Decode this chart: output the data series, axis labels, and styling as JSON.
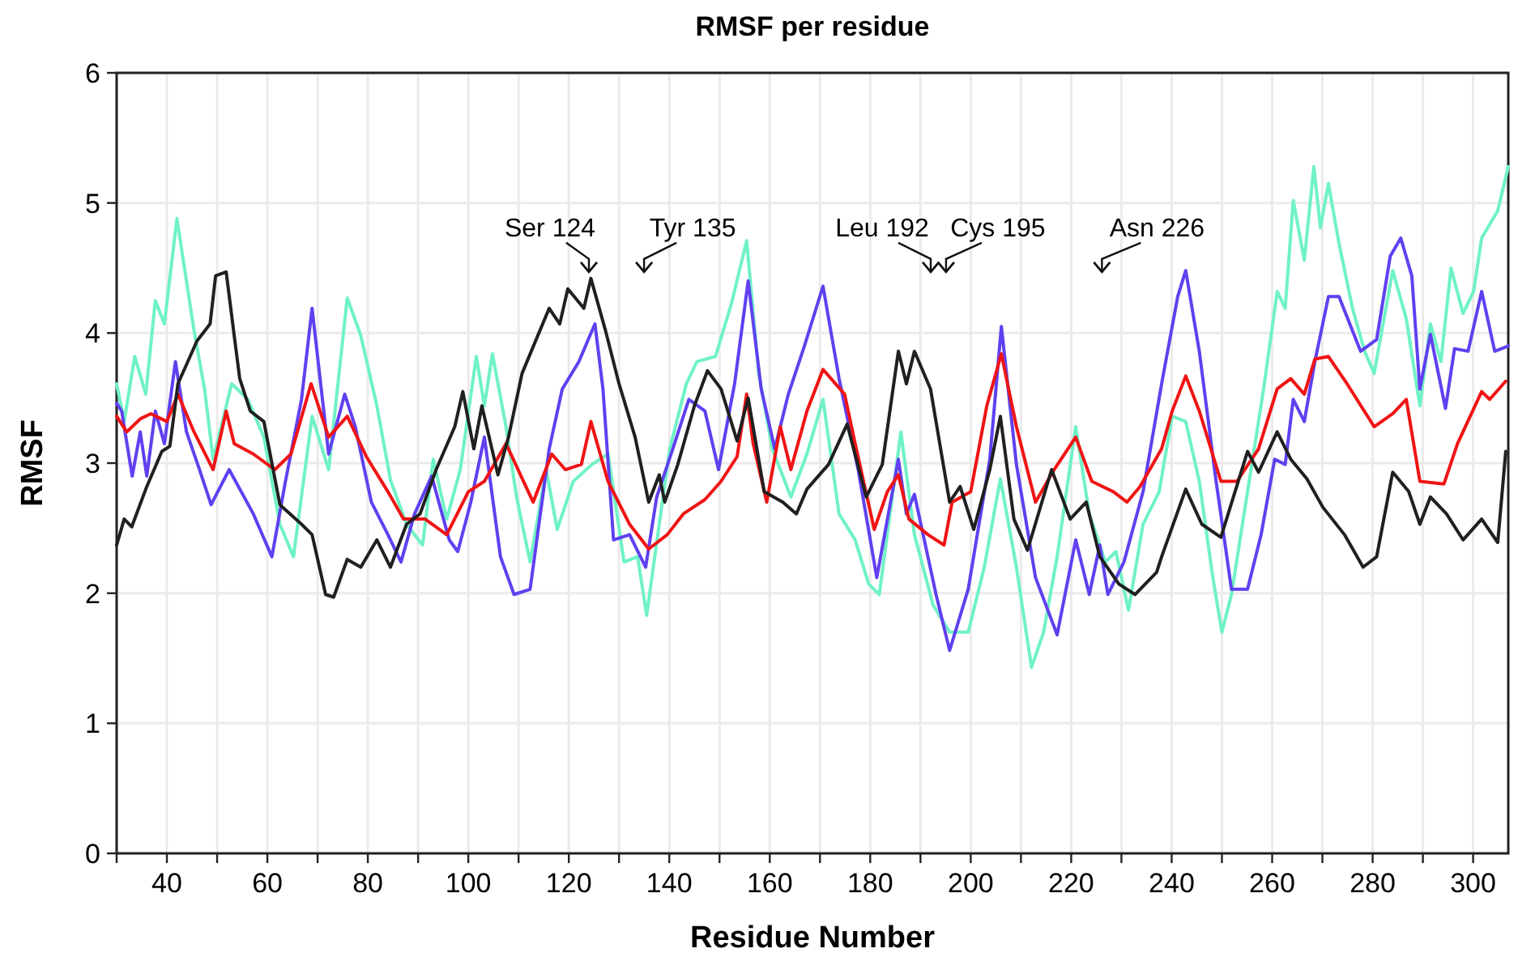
{
  "chart_data": {
    "type": "line",
    "title": "RMSF per residue",
    "xlabel": "Residue Number",
    "ylabel": "RMSF",
    "xlim": [
      30,
      307
    ],
    "xticks": [
      {
        "value": 30,
        "label": null
      },
      40,
      {
        "value": 50,
        "label": null
      },
      60,
      {
        "value": 70,
        "label": null
      },
      80,
      {
        "value": 90,
        "label": null
      },
      100,
      {
        "value": 110,
        "label": null
      },
      120,
      {
        "value": 130,
        "label": null
      },
      140,
      {
        "value": 150,
        "label": null
      },
      160,
      {
        "value": 170,
        "label": null
      },
      180,
      {
        "value": 190,
        "label": null
      },
      200,
      {
        "value": 210,
        "label": null
      },
      220,
      {
        "value": 230,
        "label": null
      },
      240,
      {
        "value": 250,
        "label": null
      },
      260,
      {
        "value": 270,
        "label": null
      },
      280,
      {
        "value": 290,
        "label": null
      },
      300
    ],
    "ylim": [
      0,
      6
    ],
    "yticks": [
      0,
      1,
      2,
      3,
      4,
      5,
      6
    ],
    "grid": true,
    "marker": "none",
    "line_style": "solid",
    "annotations": [
      {
        "text": "Ser 124",
        "x": 124,
        "y": 4.47
      },
      "Tyr 135",
      "Leu 192",
      "Cys 195",
      "Asn 226"
    ],
    "series": [
      {
        "color": "#6ff2c6",
        "x": [
          30,
          31.5,
          33.6,
          35.8,
          37.7,
          39.5,
          42,
          45.4,
          47.5,
          49.2,
          52.9,
          56.1,
          59.3,
          62.5,
          65.2,
          68.9,
          72.2,
          75.9,
          78.6,
          81.8,
          84.5,
          87.7,
          90.9,
          93,
          95.7,
          98.4,
          101.6,
          103.2,
          104.8,
          107.5,
          109.6,
          112.3,
          115.5,
          117.7,
          120.9,
          124.6,
          127.8,
          131,
          133.7,
          135.5,
          138,
          140.1,
          143.4,
          145.5,
          149.2,
          152.4,
          155.4,
          157.8,
          160.5,
          164.2,
          167.4,
          170.6,
          173.8,
          177,
          179.7,
          181.8,
          186.1,
          188.8,
          192.5,
          195.8,
          199.5,
          202.7,
          205.9,
          209.1,
          212.1,
          214.5,
          217.2,
          220.9,
          223.6,
          226.8,
          228.9,
          231.4,
          234.3,
          237.5,
          240.1,
          242.8,
          245.5,
          248.2,
          250,
          251.9,
          255.1,
          258.3,
          261,
          262.6,
          264.2,
          266.4,
          268.3,
          269.6,
          271.2,
          273.3,
          276,
          278.4,
          280.3,
          284,
          286.7,
          289.4,
          291.5,
          293.6,
          295.6,
          298,
          300.1,
          301.7,
          304.9,
          307
        ],
        "values": [
          3.61,
          3.32,
          3.82,
          3.53,
          4.25,
          4.07,
          4.88,
          4.02,
          3.57,
          3.03,
          3.61,
          3.49,
          3.2,
          2.53,
          2.28,
          3.36,
          2.95,
          4.27,
          3.98,
          3.44,
          2.87,
          2.53,
          2.37,
          3.03,
          2.57,
          2.95,
          3.82,
          3.44,
          3.84,
          3.28,
          2.74,
          2.24,
          2.95,
          2.49,
          2.86,
          2.99,
          3.07,
          2.24,
          2.28,
          1.83,
          2.53,
          3.11,
          3.61,
          3.78,
          3.82,
          4.23,
          4.71,
          3.69,
          3.11,
          2.74,
          3.07,
          3.49,
          2.61,
          2.41,
          2.07,
          1.99,
          3.24,
          2.45,
          1.91,
          1.7,
          1.7,
          2.2,
          2.88,
          2.2,
          1.43,
          1.7,
          2.28,
          3.28,
          2.61,
          2.24,
          2.32,
          1.87,
          2.53,
          2.78,
          3.36,
          3.32,
          2.86,
          2.12,
          1.7,
          1.99,
          2.78,
          3.57,
          4.32,
          4.19,
          5.02,
          4.56,
          5.28,
          4.81,
          5.15,
          4.69,
          4.19,
          3.86,
          3.69,
          4.48,
          4.11,
          3.44,
          4.07,
          3.78,
          4.5,
          4.15,
          4.32,
          4.73,
          4.94,
          5.28
        ]
      },
      {
        "color": "#6040f0",
        "x": [
          30,
          31,
          33.1,
          34.7,
          36,
          37.7,
          39.5,
          41.7,
          43.9,
          46.5,
          48.8,
          52.4,
          57.2,
          60.9,
          63.6,
          66.8,
          68.9,
          72.2,
          75.4,
          77.5,
          80.7,
          84,
          86.6,
          89.3,
          92.7,
          96.2,
          97.9,
          100.5,
          103.2,
          106.4,
          109.1,
          112.3,
          116.1,
          118.7,
          122,
          125.2,
          126.8,
          128.9,
          132.1,
          135.3,
          137.5,
          140.7,
          143.9,
          147.1,
          149.8,
          153,
          155.7,
          158.3,
          161,
          163.7,
          166.9,
          170.6,
          173.8,
          177.6,
          181.3,
          185.6,
          187.2,
          188.8,
          193.1,
          195.8,
          199.5,
          203.8,
          206.1,
          209.1,
          212.9,
          217.2,
          220.9,
          223.6,
          225.7,
          227.3,
          230.5,
          234.3,
          238,
          241.2,
          242.8,
          245.5,
          248.7,
          251.9,
          255.1,
          257.8,
          260.5,
          262.6,
          264.2,
          266.4,
          268.5,
          271.2,
          273.3,
          277.6,
          280.8,
          283.5,
          285.6,
          287.8,
          289.4,
          291.5,
          294.5,
          296.3,
          299,
          301.7,
          304.3,
          307
        ],
        "values": [
          3.46,
          3.4,
          2.9,
          3.24,
          2.9,
          3.4,
          3.15,
          3.78,
          3.24,
          2.95,
          2.68,
          2.95,
          2.61,
          2.28,
          2.86,
          3.49,
          4.19,
          3.07,
          3.53,
          3.28,
          2.7,
          2.45,
          2.24,
          2.61,
          2.9,
          2.41,
          2.32,
          2.7,
          3.2,
          2.28,
          1.99,
          2.03,
          3.11,
          3.57,
          3.78,
          4.07,
          3.57,
          2.41,
          2.45,
          2.2,
          2.74,
          3.11,
          3.49,
          3.4,
          2.95,
          3.61,
          4.4,
          3.57,
          3.11,
          3.53,
          3.9,
          4.36,
          3.65,
          2.95,
          2.12,
          3.03,
          2.61,
          2.76,
          1.99,
          1.56,
          2.03,
          3.03,
          4.05,
          2.99,
          2.12,
          1.68,
          2.41,
          1.99,
          2.37,
          1.99,
          2.24,
          2.78,
          3.61,
          4.28,
          4.48,
          3.86,
          2.9,
          2.03,
          2.03,
          2.45,
          3.03,
          2.99,
          3.49,
          3.32,
          3.78,
          4.28,
          4.28,
          3.86,
          3.95,
          4.59,
          4.73,
          4.44,
          3.57,
          3.99,
          3.42,
          3.88,
          3.86,
          4.32,
          3.86,
          3.9
        ]
      },
      {
        "color": "#f01414",
        "x": [
          30,
          32,
          34.7,
          36.8,
          40,
          42.2,
          45.4,
          49.2,
          51.8,
          53.4,
          57.2,
          61.5,
          64.7,
          68.7,
          72.2,
          75.9,
          79.7,
          84,
          87.1,
          91.4,
          95.7,
          100,
          103.2,
          107.5,
          112.9,
          116.6,
          119.3,
          122.5,
          124.4,
          127.8,
          132.1,
          135.9,
          139.6,
          142.8,
          147.1,
          150.3,
          153.5,
          155.4,
          156.7,
          159.4,
          162.1,
          164.2,
          167.4,
          170.6,
          174.9,
          177,
          180.8,
          183.4,
          185.6,
          187.7,
          191.5,
          194.7,
          196.3,
          200,
          203.2,
          206.1,
          209.1,
          212.9,
          216.6,
          220.9,
          224.1,
          228.4,
          231.1,
          233.7,
          238,
          240.1,
          242.8,
          245.5,
          249.8,
          253,
          257.3,
          261,
          263.7,
          266.4,
          268.5,
          271.2,
          274.9,
          280.3,
          284,
          286.7,
          289.4,
          294.2,
          296.9,
          301.7,
          303.3,
          306.5
        ],
        "values": [
          3.36,
          3.24,
          3.34,
          3.38,
          3.32,
          3.53,
          3.24,
          2.95,
          3.4,
          3.15,
          3.07,
          2.95,
          3.07,
          3.61,
          3.2,
          3.36,
          3.05,
          2.78,
          2.57,
          2.57,
          2.45,
          2.78,
          2.86,
          3.15,
          2.7,
          3.07,
          2.95,
          2.99,
          3.32,
          2.86,
          2.53,
          2.34,
          2.45,
          2.61,
          2.72,
          2.86,
          3.05,
          3.53,
          3.15,
          2.7,
          3.28,
          2.95,
          3.4,
          3.72,
          3.53,
          3.15,
          2.49,
          2.78,
          2.91,
          2.57,
          2.45,
          2.37,
          2.7,
          2.78,
          3.44,
          3.84,
          3.28,
          2.7,
          2.95,
          3.2,
          2.86,
          2.78,
          2.7,
          2.82,
          3.11,
          3.4,
          3.67,
          3.4,
          2.86,
          2.86,
          3.11,
          3.57,
          3.65,
          3.53,
          3.8,
          3.82,
          3.61,
          3.28,
          3.38,
          3.49,
          2.86,
          2.84,
          3.15,
          3.55,
          3.49,
          3.63
        ]
      },
      {
        "color": "#202020",
        "x": [
          30,
          31.5,
          33,
          36,
          39,
          40.6,
          42.2,
          46,
          48.6,
          49.7,
          51.8,
          53.4,
          54.5,
          56.6,
          59.3,
          62.5,
          66.8,
          68.9,
          71.6,
          73.2,
          75.9,
          78.6,
          81.8,
          84.5,
          87.7,
          90.4,
          93.6,
          97.3,
          98.9,
          101.1,
          102.7,
          105.9,
          108,
          110.7,
          116.1,
          118.2,
          119.8,
          123,
          124.4,
          127.3,
          130,
          133.2,
          135.9,
          138,
          139.1,
          141.7,
          145,
          147.6,
          150.3,
          153.5,
          155.7,
          158.9,
          162.6,
          165.3,
          167.4,
          171.7,
          175.4,
          179.2,
          182.4,
          185.6,
          187.2,
          188.8,
          192,
          195.8,
          197.9,
          200.6,
          203.8,
          205.9,
          208.6,
          211.3,
          216.1,
          219.8,
          223,
          225.7,
          229.5,
          232.7,
          237,
          238,
          242.8,
          246,
          249.8,
          255.1,
          257.3,
          261,
          263.7,
          266.9,
          270.1,
          274.4,
          278.1,
          280.8,
          284,
          287.2,
          289.4,
          291.5,
          294.7,
          298,
          301.7,
          304.9,
          306.5
        ],
        "values": [
          2.37,
          2.57,
          2.51,
          2.82,
          3.09,
          3.13,
          3.61,
          3.94,
          4.07,
          4.44,
          4.47,
          3.98,
          3.65,
          3.4,
          3.32,
          2.68,
          2.53,
          2.45,
          1.99,
          1.97,
          2.26,
          2.2,
          2.41,
          2.2,
          2.53,
          2.61,
          2.95,
          3.28,
          3.55,
          3.11,
          3.44,
          2.91,
          3.2,
          3.69,
          4.19,
          4.07,
          4.34,
          4.19,
          4.42,
          4.02,
          3.61,
          3.2,
          2.7,
          2.91,
          2.7,
          2.99,
          3.44,
          3.71,
          3.57,
          3.17,
          3.5,
          2.78,
          2.7,
          2.61,
          2.8,
          2.99,
          3.3,
          2.74,
          2.99,
          3.86,
          3.61,
          3.86,
          3.57,
          2.7,
          2.82,
          2.49,
          2.95,
          3.36,
          2.57,
          2.33,
          2.95,
          2.57,
          2.7,
          2.28,
          2.07,
          1.99,
          2.16,
          2.28,
          2.8,
          2.53,
          2.43,
          3.09,
          2.93,
          3.24,
          3.03,
          2.88,
          2.66,
          2.45,
          2.2,
          2.28,
          2.93,
          2.78,
          2.53,
          2.74,
          2.61,
          2.41,
          2.57,
          2.39,
          3.09
        ]
      }
    ]
  }
}
